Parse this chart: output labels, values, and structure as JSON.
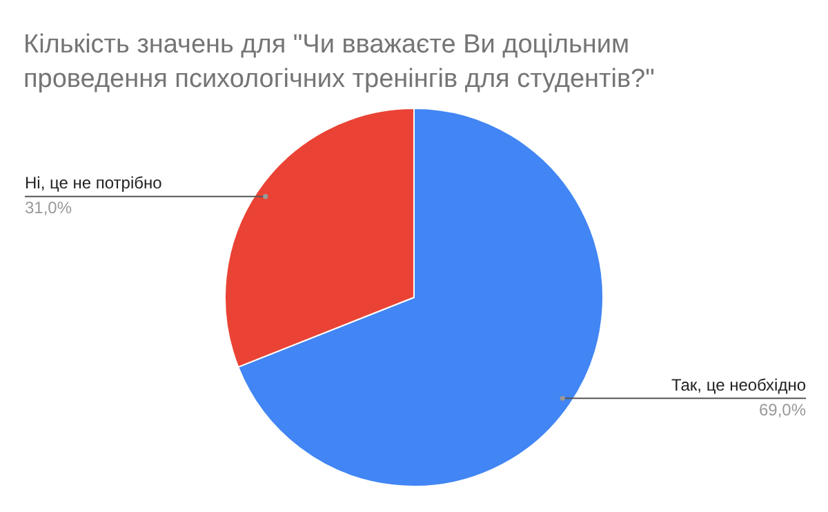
{
  "chart_data": {
    "type": "pie",
    "title": "Кількість значень для \"Чи вважаєте Ви доцільним проведення психологічних тренінгів для студентів?\"",
    "categories": [
      "Так, це необхідно",
      "Ні, це не потрібно"
    ],
    "values": [
      69.0,
      31.0
    ],
    "colors": [
      "#4285f4",
      "#ea4335"
    ],
    "value_labels": [
      "69,0%",
      "31,0%"
    ],
    "legend": false
  }
}
